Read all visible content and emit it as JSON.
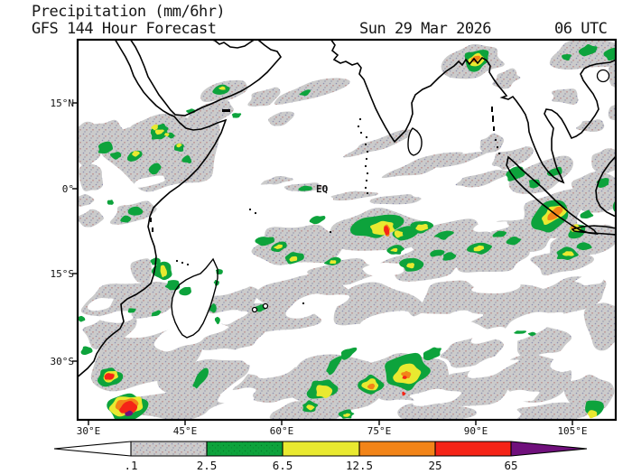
{
  "header": {
    "title": "Precipitation (mm/6hr)",
    "subtitle": "GFS 144 Hour Forecast",
    "date": "Sun 29 Mar 2026",
    "time": "06 UTC"
  },
  "map": {
    "eq_label": "EQ",
    "lat_labels": [
      "15°N",
      "0°",
      "15°S",
      "30°S"
    ],
    "lon_labels": [
      "30°E",
      "45°E",
      "60°E",
      "75°E",
      "90°E",
      "105°E"
    ]
  },
  "legend": {
    "values": [
      ".1",
      "2.5",
      "6.5",
      "12.5",
      "25",
      "65"
    ],
    "colors": {
      "none": "#ffffff",
      "gray": "#cbcbcb",
      "green": "#0da33c",
      "yellow": "#e9e930",
      "orange": "#f28418",
      "red": "#f52417",
      "purple": "#70107c"
    }
  }
}
